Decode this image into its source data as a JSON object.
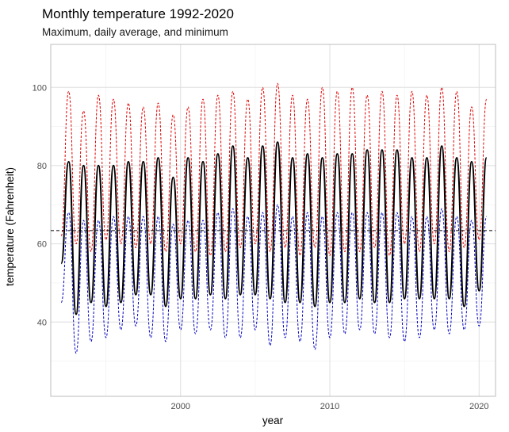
{
  "chart_data": {
    "type": "line",
    "title": "Monthly temperature 1992-2020",
    "subtitle": "Maximum, daily average, and minimum",
    "xlabel": "year",
    "ylabel": "temperature (Fahrenheit)",
    "xlim": [
      1991.3,
      2021.1
    ],
    "ylim": [
      21,
      111
    ],
    "x_ticks": [
      2000,
      2010,
      2020
    ],
    "x_tick_labels": [
      "2000",
      "2010",
      "2020"
    ],
    "y_ticks": [
      40,
      60,
      80,
      100
    ],
    "y_tick_labels": [
      "40",
      "60",
      "80",
      "100"
    ],
    "y_minor_ticks": [
      30,
      50,
      70,
      90
    ],
    "x_minor_ticks": [
      1995,
      2005,
      2015
    ],
    "grid": true,
    "legend": "none",
    "reference_line": {
      "y": 63.4,
      "style": "dashed",
      "color": "#000000"
    },
    "series": [
      {
        "style": "dashed",
        "color": "#e00000",
        "width": 1,
        "x": [
          1992.0,
          1992.5,
          1993.0,
          1993.5,
          1994.0,
          1994.5,
          1995.0,
          1995.5,
          1996.0,
          1996.5,
          1997.0,
          1997.5,
          1998.0,
          1998.5,
          1999.0,
          1999.5,
          2000.0,
          2000.5,
          2001.0,
          2001.5,
          2002.0,
          2002.5,
          2003.0,
          2003.5,
          2004.0,
          2004.5,
          2005.0,
          2005.5,
          2006.0,
          2006.5,
          2007.0,
          2007.5,
          2008.0,
          2008.5,
          2009.0,
          2009.5,
          2010.0,
          2010.5,
          2011.0,
          2011.5,
          2012.0,
          2012.5,
          2013.0,
          2013.5,
          2014.0,
          2014.5,
          2015.0,
          2015.5,
          2016.0,
          2016.5,
          2017.0,
          2017.5,
          2018.0,
          2018.5,
          2019.0,
          2019.5,
          2020.0,
          2020.5
        ],
        "values": [
          62,
          99,
          60,
          94,
          58,
          98,
          61,
          97,
          60,
          96,
          59,
          95,
          60,
          96,
          58,
          93,
          60,
          95,
          58,
          97,
          57,
          98,
          58,
          99,
          59,
          97,
          60,
          100,
          58,
          101,
          59,
          98,
          57,
          97,
          59,
          100,
          57,
          99,
          58,
          100,
          58,
          98,
          59,
          99,
          57,
          98,
          60,
          99,
          58,
          98,
          60,
          100,
          58,
          99,
          59,
          95,
          61,
          97
        ]
      },
      {
        "style": "solid",
        "color": "#000000",
        "width": 2,
        "x": [
          1992.0,
          1992.5,
          1993.0,
          1993.5,
          1994.0,
          1994.5,
          1995.0,
          1995.5,
          1996.0,
          1996.5,
          1997.0,
          1997.5,
          1998.0,
          1998.5,
          1999.0,
          1999.5,
          2000.0,
          2000.5,
          2001.0,
          2001.5,
          2002.0,
          2002.5,
          2003.0,
          2003.5,
          2004.0,
          2004.5,
          2005.0,
          2005.5,
          2006.0,
          2006.5,
          2007.0,
          2007.5,
          2008.0,
          2008.5,
          2009.0,
          2009.5,
          2010.0,
          2010.5,
          2011.0,
          2011.5,
          2012.0,
          2012.5,
          2013.0,
          2013.5,
          2014.0,
          2014.5,
          2015.0,
          2015.5,
          2016.0,
          2016.5,
          2017.0,
          2017.5,
          2018.0,
          2018.5,
          2019.0,
          2019.5,
          2020.0,
          2020.5
        ],
        "values": [
          55,
          81,
          42,
          80,
          45,
          80,
          44,
          80,
          45,
          81,
          47,
          81,
          47,
          82,
          44,
          77,
          46,
          82,
          46,
          81,
          47,
          83,
          46,
          85,
          47,
          82,
          47,
          85,
          46,
          86,
          45,
          82,
          45,
          83,
          44,
          82,
          45,
          83,
          45,
          83,
          46,
          84,
          45,
          84,
          45,
          84,
          46,
          82,
          46,
          82,
          46,
          85,
          46,
          82,
          44,
          81,
          48,
          82
        ]
      },
      {
        "style": "dashed",
        "color": "#0000c0",
        "width": 1,
        "x": [
          1992.0,
          1992.5,
          1993.0,
          1993.5,
          1994.0,
          1994.5,
          1995.0,
          1995.5,
          1996.0,
          1996.5,
          1997.0,
          1997.5,
          1998.0,
          1998.5,
          1999.0,
          1999.5,
          2000.0,
          2000.5,
          2001.0,
          2001.5,
          2002.0,
          2002.5,
          2003.0,
          2003.5,
          2004.0,
          2004.5,
          2005.0,
          2005.5,
          2006.0,
          2006.5,
          2007.0,
          2007.5,
          2008.0,
          2008.5,
          2009.0,
          2009.5,
          2010.0,
          2010.5,
          2011.0,
          2011.5,
          2012.0,
          2012.5,
          2013.0,
          2013.5,
          2014.0,
          2014.5,
          2015.0,
          2015.5,
          2016.0,
          2016.5,
          2017.0,
          2017.5,
          2018.0,
          2018.5,
          2019.0,
          2019.5,
          2020.0,
          2020.5
        ],
        "values": [
          45,
          68,
          32,
          66,
          35,
          66,
          36,
          67,
          38,
          67,
          39,
          67,
          36,
          67,
          35,
          65,
          38,
          66,
          37,
          66,
          38,
          68,
          36,
          69,
          36,
          67,
          38,
          68,
          34,
          70,
          36,
          67,
          35,
          68,
          33,
          67,
          36,
          68,
          37,
          68,
          38,
          68,
          37,
          68,
          36,
          68,
          35,
          67,
          36,
          67,
          38,
          69,
          37,
          67,
          38,
          66,
          39,
          67
        ]
      }
    ]
  }
}
